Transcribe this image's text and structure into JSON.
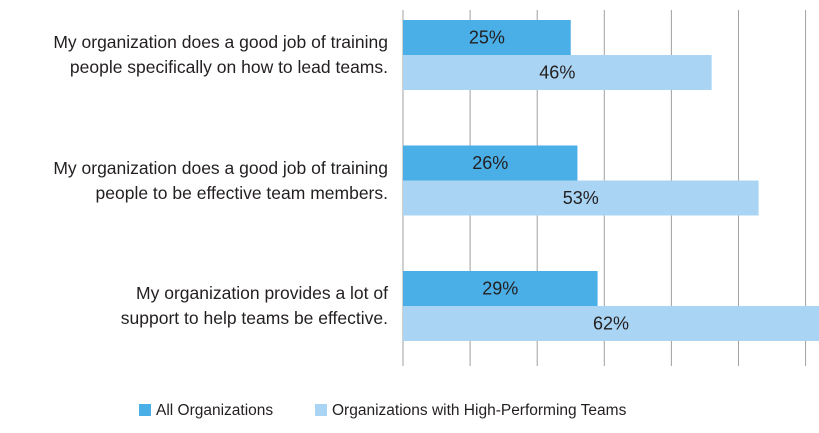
{
  "chart_data": {
    "type": "bar",
    "orientation": "horizontal",
    "categories": [
      "My organization does a good job of training\npeople specifically on how to lead teams.",
      "My organization does a good job of training\npeople to be effective team members.",
      "My organization provides a lot of\nsupport to help teams be effective."
    ],
    "series": [
      {
        "name": "All Organizations",
        "color": "#4aafe6",
        "values": [
          25,
          26,
          29
        ],
        "value_labels": [
          "25%",
          "26%",
          "29%"
        ]
      },
      {
        "name": "Organizations with High-Performing Teams",
        "color": "#a9d4f3",
        "values": [
          46,
          53,
          62
        ],
        "value_labels": [
          "46%",
          "53%",
          "62%"
        ]
      }
    ],
    "xlim": [
      0,
      62
    ],
    "xticks": [
      0,
      10,
      20,
      30,
      40,
      50,
      60
    ],
    "grid": true,
    "legend": "bottom"
  }
}
